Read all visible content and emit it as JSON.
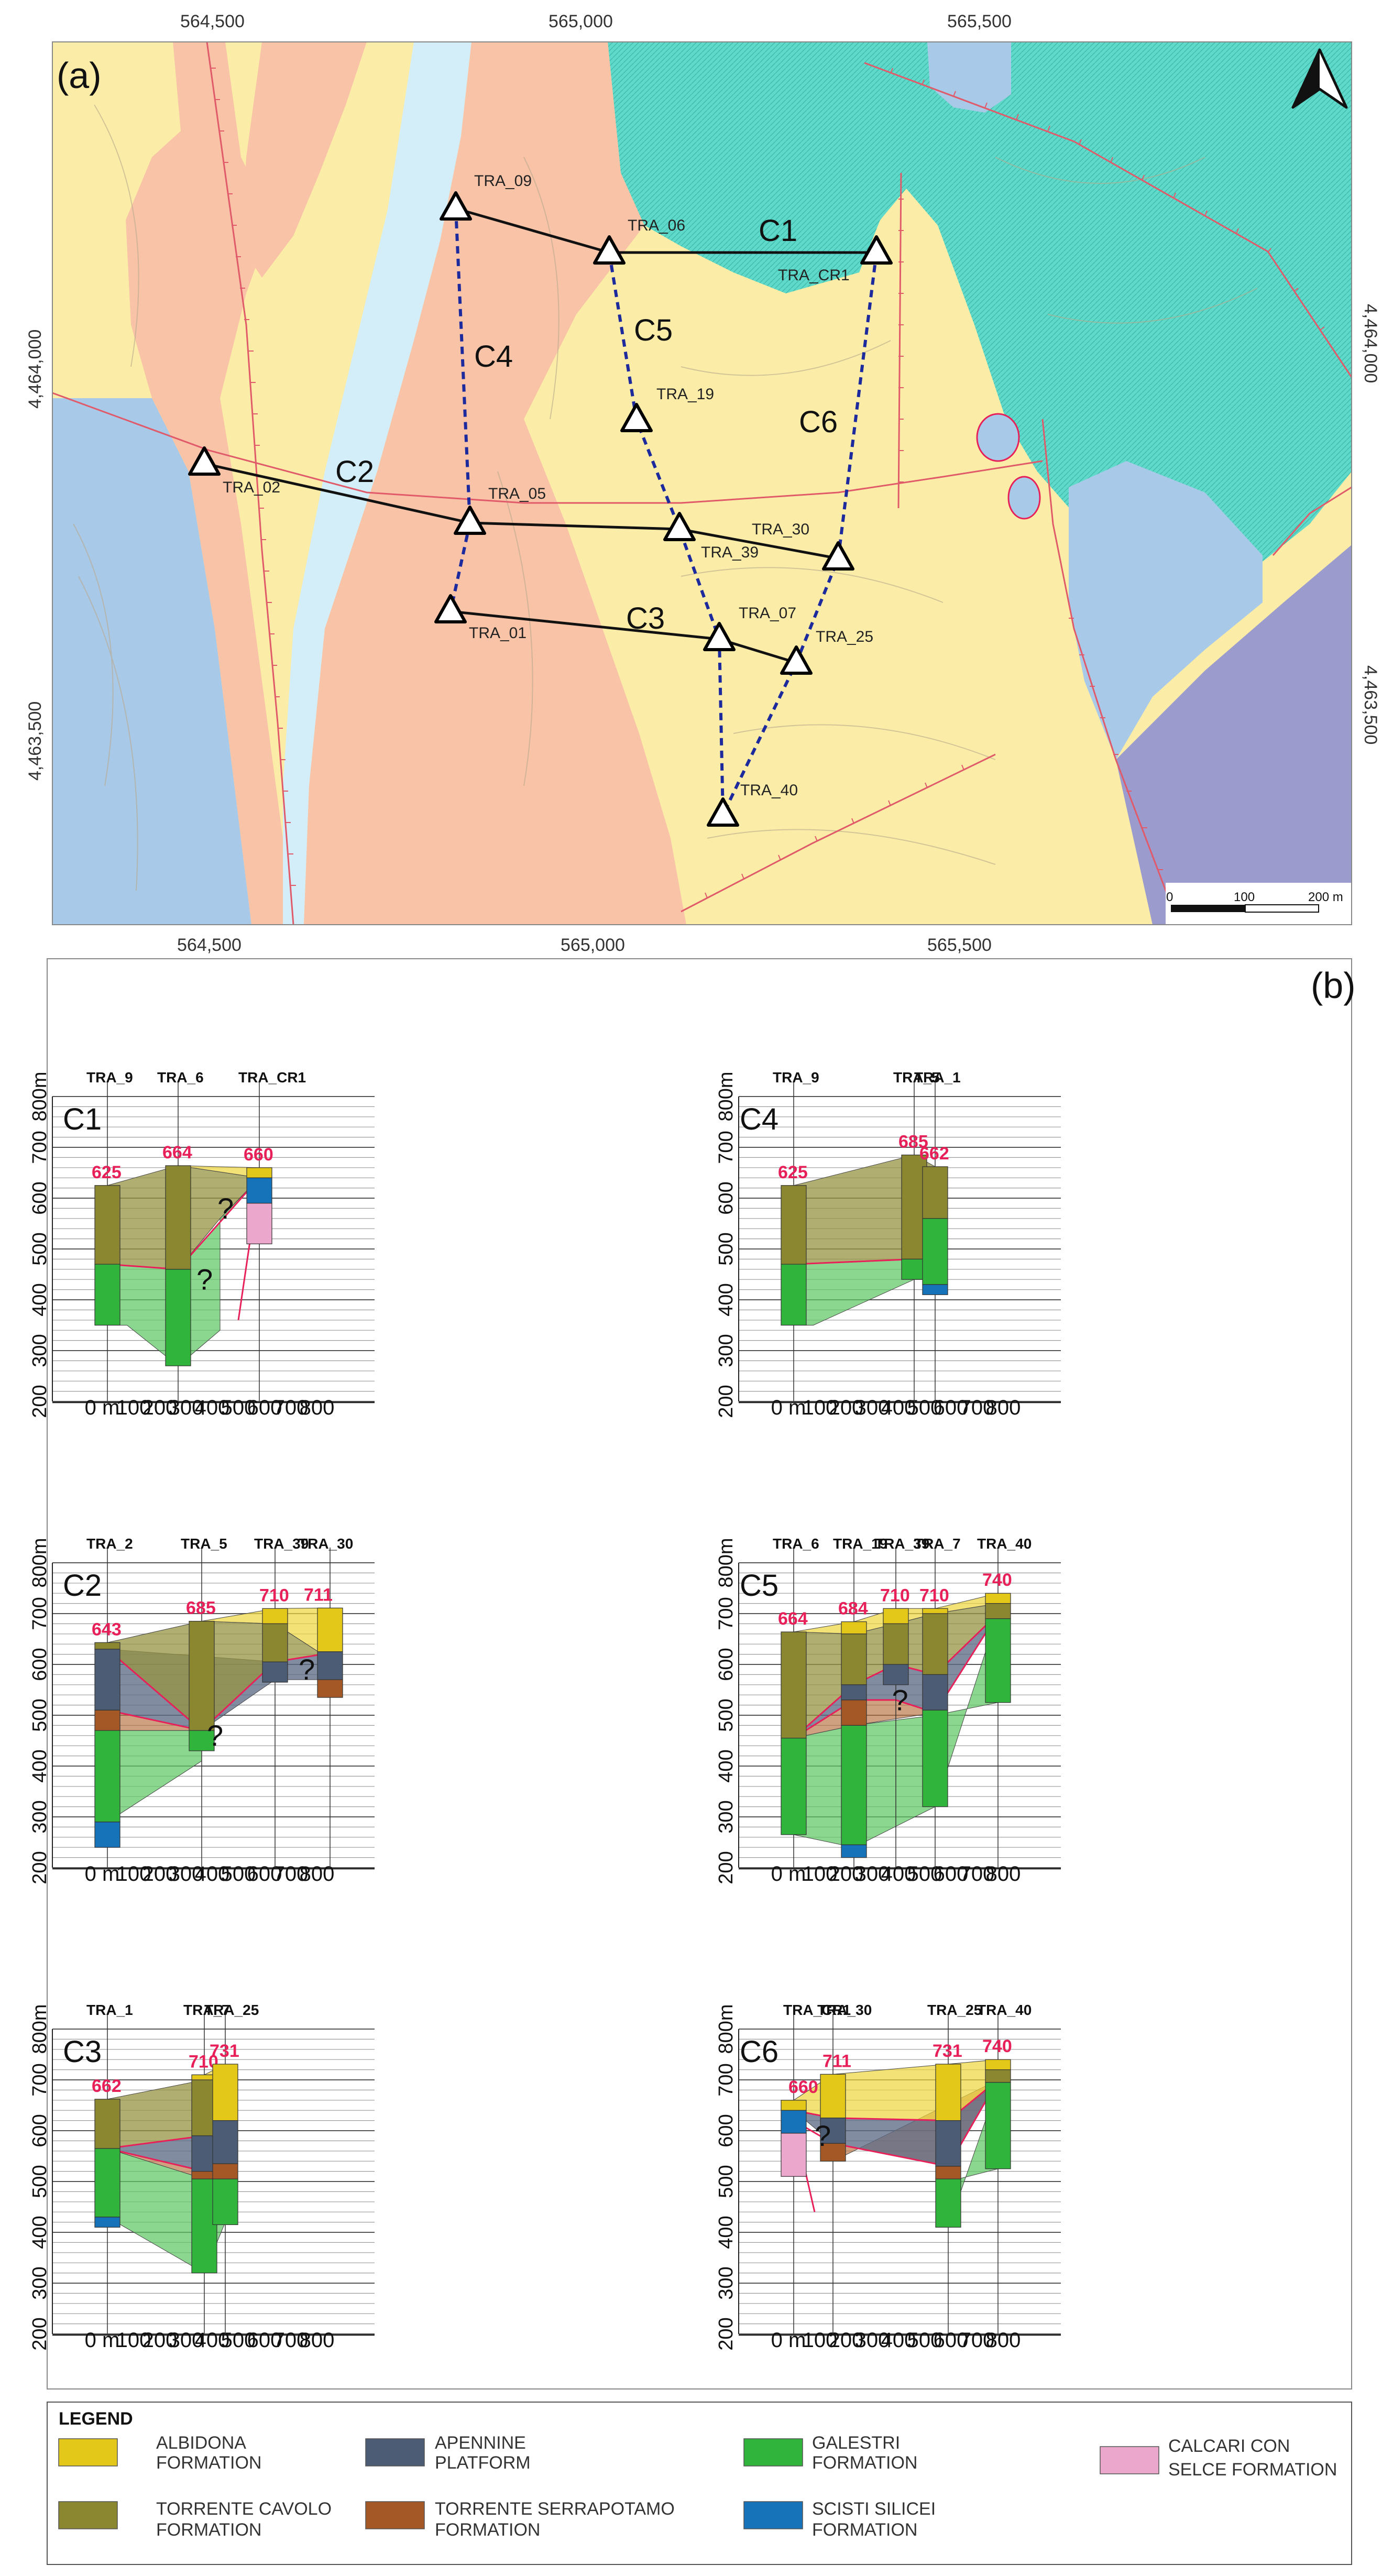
{
  "panel_labels": {
    "map": "(a)",
    "sections": "(b)"
  },
  "map": {
    "top_coords": [
      "564,500",
      "565,000",
      "565,500"
    ],
    "bottom_coords": [
      "564,500",
      "565,000",
      "565,500"
    ],
    "left_coords": [
      "4,464,000",
      "4,463,500"
    ],
    "right_coords": [
      "4,464,000",
      "4,463,500"
    ],
    "scale_labels": [
      "0",
      "100",
      "200 m"
    ],
    "stations": {
      "TRA_09": "TRA_09",
      "TRA_06": "TRA_06",
      "TRA_CR1": "TRA_CR1",
      "TRA_19": "TRA_19",
      "TRA_02": "TRA_02",
      "TRA_05": "TRA_05",
      "TRA_30": "TRA_30",
      "TRA_39": "TRA_39",
      "TRA_01": "TRA_01",
      "TRA_07": "TRA_07",
      "TRA_25": "TRA_25",
      "TRA_40": "TRA_40"
    },
    "section_labels": {
      "C1": "C1",
      "C2": "C2",
      "C3": "C3",
      "C4": "C4",
      "C5": "C5",
      "C6": "C6"
    }
  },
  "sections": {
    "y_unit": "m",
    "y_ticks": [
      "200",
      "300",
      "400",
      "500",
      "600",
      "700",
      "800m"
    ],
    "x_ticks": [
      "0 m",
      "100",
      "200",
      "300",
      "400",
      "500",
      "600",
      "700",
      "800"
    ],
    "question_mark": "?",
    "C1": {
      "title": "C1",
      "wells": [
        "TRA_9",
        "TRA_6",
        "TRA_CR1"
      ],
      "elevations": [
        "625",
        "664",
        "660"
      ]
    },
    "C4": {
      "title": "C4",
      "wells": [
        "TRA_9",
        "TRA_5",
        "TRA_1"
      ],
      "elevations": [
        "625",
        "685",
        "662"
      ]
    },
    "C2": {
      "title": "C2",
      "wells": [
        "TRA_2",
        "TRA_5",
        "TRA_39",
        "TRA_30"
      ],
      "elevations": [
        "643",
        "685",
        "710",
        "711"
      ]
    },
    "C5": {
      "title": "C5",
      "wells": [
        "TRA_6",
        "TRA_19",
        "TRA_39",
        "TRA_7",
        "TRA_40"
      ],
      "elevations": [
        "664",
        "684",
        "710",
        "710",
        "740"
      ]
    },
    "C3": {
      "title": "C3",
      "wells": [
        "TRA_1",
        "TRA_7",
        "TRA_25"
      ],
      "elevations": [
        "662",
        "710",
        "731"
      ]
    },
    "C6": {
      "title": "C6",
      "wells": [
        "TRA_CR1",
        "TRA_30",
        "TRA_25",
        "TRA_40"
      ],
      "elevations": [
        "660",
        "711",
        "731",
        "740"
      ]
    }
  },
  "legend": {
    "title": "LEGEND",
    "items": [
      {
        "line1": "ALBIDONA",
        "line2": "FORMATION",
        "color": "#e3c81a"
      },
      {
        "line1": "TORRENTE CAVOLO",
        "line2": "FORMATION",
        "color": "#8b8730"
      },
      {
        "line1": "APENNINE",
        "line2": "PLATFORM",
        "color": "#4c5c74"
      },
      {
        "line1": "TORRENTE SERRAPOTAMO",
        "line2": "FORMATION",
        "color": "#a45826"
      },
      {
        "line1": "GALESTRI",
        "line2": "FORMATION",
        "color": "#31b43c"
      },
      {
        "line1": "SCISTI SILICEI",
        "line2": "FORMATION",
        "color": "#1773b9"
      },
      {
        "line1": "CALCARI CON",
        "line2": "SELCE FORMATION",
        "color": "#eca8cc"
      }
    ]
  }
}
